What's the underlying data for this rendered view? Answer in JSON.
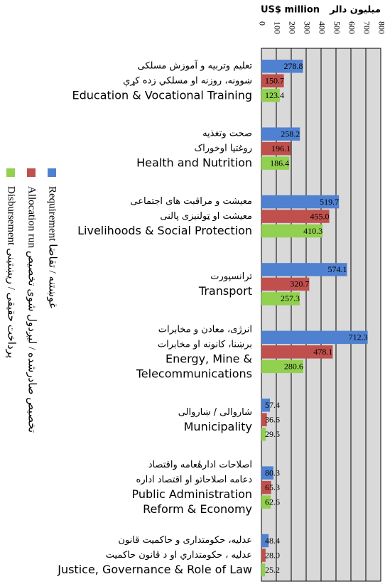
{
  "chart_data": {
    "type": "barh",
    "title_local": "ميليون دالر",
    "title": "US$ million",
    "categories": [
      [
        "تعليم وتربيه و آموزش مسلكی",
        "ښوونه، روزنه او مسلكي زده كړې",
        "Education & Vocational Training"
      ],
      [
        "صحت وتغذيه",
        "روغتيا اوخوراک",
        "Health and Nutrition"
      ],
      [
        "معیشت و مراقبت های اجتماعی",
        "معیشت او ټولنیزی پالنی",
        "Livelihoods & Social Protection"
      ],
      [
        "ترانسپورت",
        "Transport"
      ],
      [
        "انرژی، معادن و مخابرات",
        "برښنا، كانونه او مخابرات",
        "Energy, Mine &",
        "Telecommunications"
      ],
      [
        "شاروالی / ښاروالی",
        "Municipality"
      ],
      [
        "اصلاحات ادارهٔعامه واقتصاد",
        "دعامه اصلاحاتو او اقتصاد اداره",
        "Public Administration",
        "Reform & Economy"
      ],
      [
        "عدلیه، حکومتداری و حاکمیت قانون",
        "عدلیه ، حكومتداري او د قانون حاكمیت",
        "Justice, Governance & Role of Law"
      ]
    ],
    "series": [
      {
        "name": "Requirement غوښتنه / تقاضا",
        "color": "#4f81d0",
        "values": [
          278.8,
          258.2,
          519.7,
          574.1,
          712.3,
          57.4,
          80.3,
          48.4
        ]
      },
      {
        "name": "Allocation run تخصیص صادرشده / لیږدول شوی تخصیص",
        "color": "#c0504d",
        "values": [
          150.7,
          196.1,
          455.0,
          320.7,
          478.1,
          36.6,
          65.3,
          28.0
        ],
        "value_labels": [
          "150.7",
          "196.1",
          "455.0",
          "320.7",
          "478.1",
          "36.6",
          "65.3",
          "28.0"
        ]
      },
      {
        "name": "Disbursement پرداخت حقیقی / ریښتینی",
        "color": "#92d050",
        "values": [
          123.4,
          186.4,
          410.3,
          257.3,
          280.6,
          29.5,
          62.6,
          25.2
        ]
      }
    ],
    "xlim": [
      0,
      800
    ],
    "xticks": [
      0,
      100,
      200,
      300,
      400,
      500,
      600,
      700,
      800
    ],
    "grid": true
  }
}
